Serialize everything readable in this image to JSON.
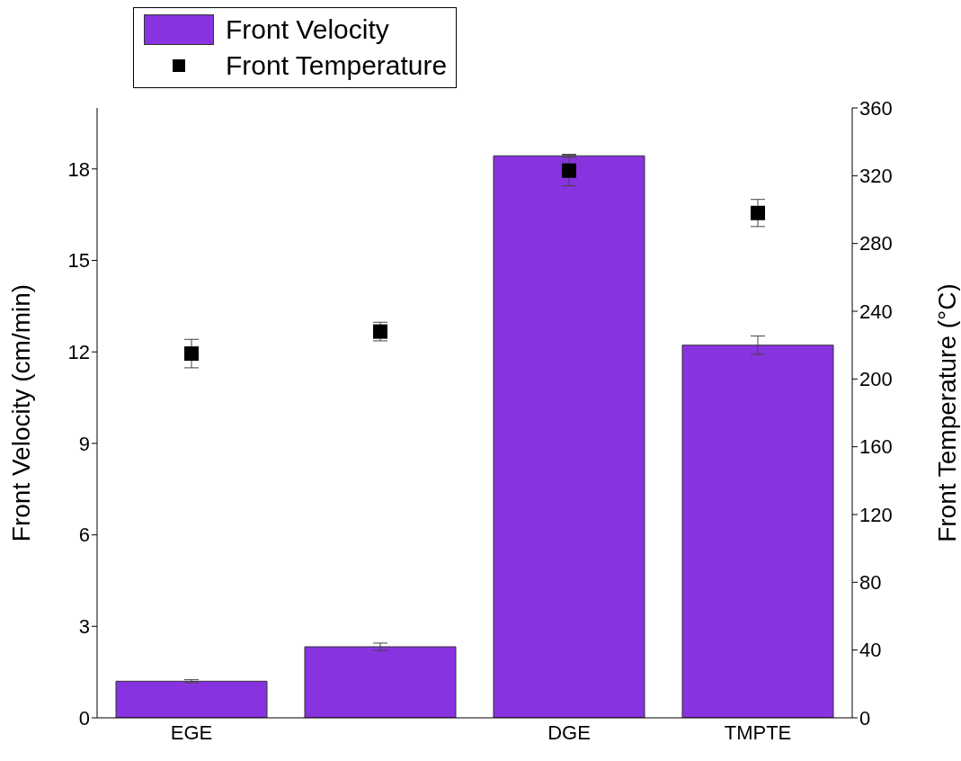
{
  "chart_data": {
    "type": "bar",
    "categories": [
      "EGE",
      null,
      "DGE",
      "TMPTE"
    ],
    "ylabel": "Front Velocity (cm/min)",
    "y2label": "Front Temperature (°C)",
    "ylim": [
      0,
      20
    ],
    "yticks": [
      0,
      3,
      6,
      9,
      12,
      15,
      18
    ],
    "y2lim": [
      0,
      360
    ],
    "y2ticks": [
      0,
      40,
      80,
      120,
      160,
      200,
      240,
      280,
      320,
      360
    ],
    "legend": "top left",
    "series": [
      {
        "name": "Front Velocity",
        "color": "#8833e0",
        "values": [
          1.2,
          2.33,
          18.43,
          12.22
        ],
        "errors": [
          0.05,
          0.12,
          0.05,
          0.3
        ]
      },
      {
        "name": "Front Temperature",
        "type": "scatter",
        "axis": "y2",
        "marker": "square",
        "color": "#000000",
        "values": [
          215,
          228,
          323,
          298
        ],
        "errors": [
          8.4,
          5.5,
          9,
          8
        ]
      }
    ]
  }
}
